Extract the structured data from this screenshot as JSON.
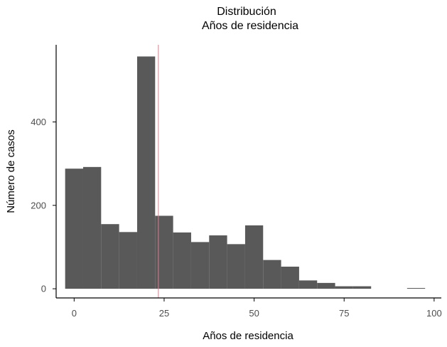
{
  "chart_data": {
    "type": "bar",
    "subtype": "histogram",
    "title": "Distribución",
    "subtitle": "Años de residencia",
    "xlabel": "Años de residencia",
    "ylabel": "Número de casos",
    "xlim": [
      -5,
      102
    ],
    "ylim": [
      -22,
      585
    ],
    "x_ticks": [
      0,
      25,
      50,
      75,
      100
    ],
    "y_ticks": [
      0,
      200,
      400
    ],
    "bin_width": 5,
    "bins": [
      {
        "x0": -2.5,
        "x1": 2.5,
        "count": 288
      },
      {
        "x0": 2.5,
        "x1": 7.5,
        "count": 292
      },
      {
        "x0": 7.5,
        "x1": 12.5,
        "count": 155
      },
      {
        "x0": 12.5,
        "x1": 17.5,
        "count": 136
      },
      {
        "x0": 17.5,
        "x1": 22.5,
        "count": 557
      },
      {
        "x0": 22.5,
        "x1": 27.5,
        "count": 175
      },
      {
        "x0": 27.5,
        "x1": 32.5,
        "count": 135
      },
      {
        "x0": 32.5,
        "x1": 37.5,
        "count": 112
      },
      {
        "x0": 37.5,
        "x1": 42.5,
        "count": 128
      },
      {
        "x0": 42.5,
        "x1": 47.5,
        "count": 107
      },
      {
        "x0": 47.5,
        "x1": 52.5,
        "count": 152
      },
      {
        "x0": 52.5,
        "x1": 57.5,
        "count": 69
      },
      {
        "x0": 57.5,
        "x1": 62.5,
        "count": 53
      },
      {
        "x0": 62.5,
        "x1": 67.5,
        "count": 20
      },
      {
        "x0": 67.5,
        "x1": 72.5,
        "count": 14
      },
      {
        "x0": 72.5,
        "x1": 77.5,
        "count": 6
      },
      {
        "x0": 77.5,
        "x1": 82.5,
        "count": 6
      },
      {
        "x0": 92.5,
        "x1": 97.5,
        "count": 1
      }
    ],
    "reference_line_x": 23.4,
    "bar_color": "#595959",
    "reference_line_color": "#e07b8e",
    "grid": false,
    "legend": "none"
  }
}
